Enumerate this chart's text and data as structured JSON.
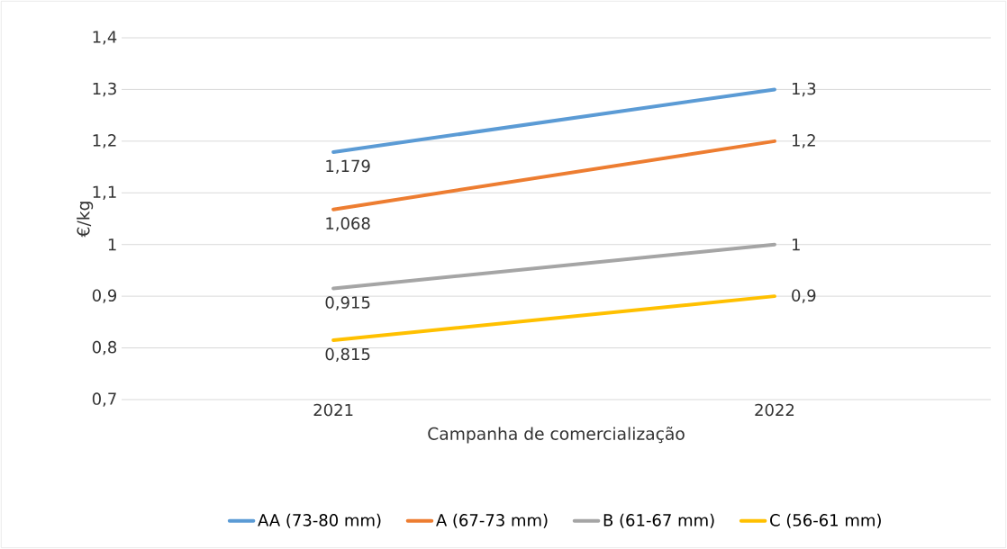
{
  "chart_data": {
    "type": "line",
    "xlabel": "Campanha de comercialização",
    "ylabel": "€/kg",
    "categories": [
      "2021",
      "2022"
    ],
    "series": [
      {
        "name": "AA (73-80 mm)",
        "color": "#5b9bd5",
        "values": [
          1.179,
          1.3
        ],
        "value_labels": [
          "1,179",
          "1,3"
        ]
      },
      {
        "name": "A (67-73 mm)",
        "color": "#ed7d31",
        "values": [
          1.068,
          1.2
        ],
        "value_labels": [
          "1,068",
          "1,2"
        ]
      },
      {
        "name": "B (61-67 mm)",
        "color": "#a5a5a5",
        "values": [
          0.915,
          1
        ],
        "value_labels": [
          "0,915",
          "1"
        ]
      },
      {
        "name": "C (56-61 mm)",
        "color": "#ffc000",
        "values": [
          0.815,
          0.9
        ],
        "value_labels": [
          "0,815",
          "0,9"
        ]
      }
    ],
    "ylim": [
      0.7,
      1.4
    ],
    "yticks": [
      {
        "value": 0.7,
        "label": "0,7"
      },
      {
        "value": 0.8,
        "label": "0,8"
      },
      {
        "value": 0.9,
        "label": "0,9"
      },
      1,
      {
        "value": 1.1,
        "label": "1,1"
      },
      {
        "value": 1.2,
        "label": "1,2"
      },
      {
        "value": 1.3,
        "label": "1,3"
      },
      {
        "value": 1.4,
        "label": "1,4"
      }
    ],
    "grid": "y",
    "legend": "bottom"
  }
}
